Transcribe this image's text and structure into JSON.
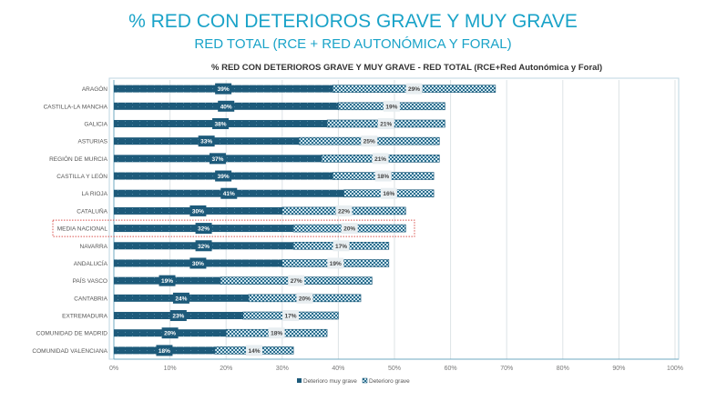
{
  "title": "% RED CON DETERIOROS GRAVE Y MUY GRAVE",
  "subtitle": "RED TOTAL (RCE + RED AUTONÓMICA Y FORAL)",
  "colors": {
    "muy_grave": "#1d5a7a",
    "grave": "#a9cfe0",
    "highlight": "#d9534f",
    "title": "#1aa3c8"
  },
  "chart_data": {
    "type": "bar",
    "orientation": "horizontal",
    "stacked": true,
    "title": "% RED CON DETERIOROS GRAVE Y MUY GRAVE  - RED TOTAL (RCE+Red Autonómica y Foral)",
    "categories": [
      "ARAGÓN",
      "CASTILLA-LA MANCHA",
      "GALICIA",
      "ASTURIAS",
      "REGIÓN DE MURCIA",
      "CASTILLA Y LEÓN",
      "LA RIOJA",
      "CATALUÑA",
      "MEDIA NACIONAL",
      "NAVARRA",
      "ANDALUCÍA",
      "PAÍS VASCO",
      "CANTABRIA",
      "EXTREMADURA",
      "COMUNIDAD DE MADRID",
      "COMUNIDAD VALENCIANA"
    ],
    "series": [
      {
        "name": "Deterioro muy grave",
        "values": [
          39,
          40,
          38,
          33,
          37,
          39,
          41,
          30,
          32,
          32,
          30,
          19,
          24,
          23,
          20,
          18
        ]
      },
      {
        "name": "Deterioro grave",
        "values": [
          29,
          19,
          21,
          25,
          21,
          18,
          16,
          22,
          20,
          17,
          19,
          27,
          20,
          17,
          18,
          14
        ]
      }
    ],
    "xlim": [
      0,
      100
    ],
    "xticks": [
      "0%",
      "10%",
      "20%",
      "30%",
      "40%",
      "50%",
      "60%",
      "70%",
      "80%",
      "90%",
      "100%"
    ],
    "highlighted_category": "MEDIA NACIONAL",
    "grid": true,
    "legend": "bottom"
  }
}
